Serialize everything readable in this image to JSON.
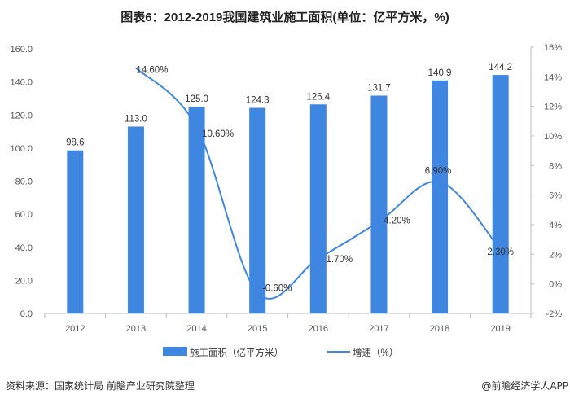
{
  "title": "图表6：2012-2019我国建筑业施工面积(单位：亿平方米，%)",
  "source": "资料来源：国家统计局 前瞻产业研究院整理",
  "credit": "@前瞻经济学人APP",
  "watermark": "前瞻产业研究院",
  "chart_data": {
    "type": "bar+line",
    "categories": [
      "2012",
      "2013",
      "2014",
      "2015",
      "2016",
      "2017",
      "2018",
      "2019"
    ],
    "series": [
      {
        "name": "施工面积（亿平方米）",
        "type": "bar",
        "axis": "left",
        "color": "#3f86e0",
        "values": [
          98.6,
          113.0,
          125.0,
          124.3,
          126.4,
          131.7,
          140.9,
          144.2
        ],
        "labels": [
          "98.6",
          "113.0",
          "125.0",
          "124.3",
          "126.4",
          "131.7",
          "140.9",
          "144.2"
        ]
      },
      {
        "name": "增速（%）",
        "type": "line",
        "axis": "right",
        "color": "#3f86e0",
        "smooth": true,
        "values": [
          null,
          14.6,
          10.6,
          -0.6,
          1.7,
          4.2,
          6.9,
          2.3
        ],
        "labels": [
          "",
          "14.60%",
          "10.60%",
          "-0.60%",
          "1.70%",
          "4.20%",
          "6.90%",
          "2.30%"
        ]
      }
    ],
    "left_axis": {
      "range": [
        0,
        160
      ],
      "ticks": [
        "0.0",
        "20.0",
        "40.0",
        "60.0",
        "80.0",
        "100.0",
        "120.0",
        "140.0",
        "160.0"
      ]
    },
    "right_axis": {
      "range": [
        -2,
        16
      ],
      "ticks": [
        "-2%",
        "0%",
        "2%",
        "4%",
        "6%",
        "8%",
        "10%",
        "12%",
        "14%",
        "16%"
      ]
    },
    "grid": false,
    "legend_placement": "bottom"
  }
}
